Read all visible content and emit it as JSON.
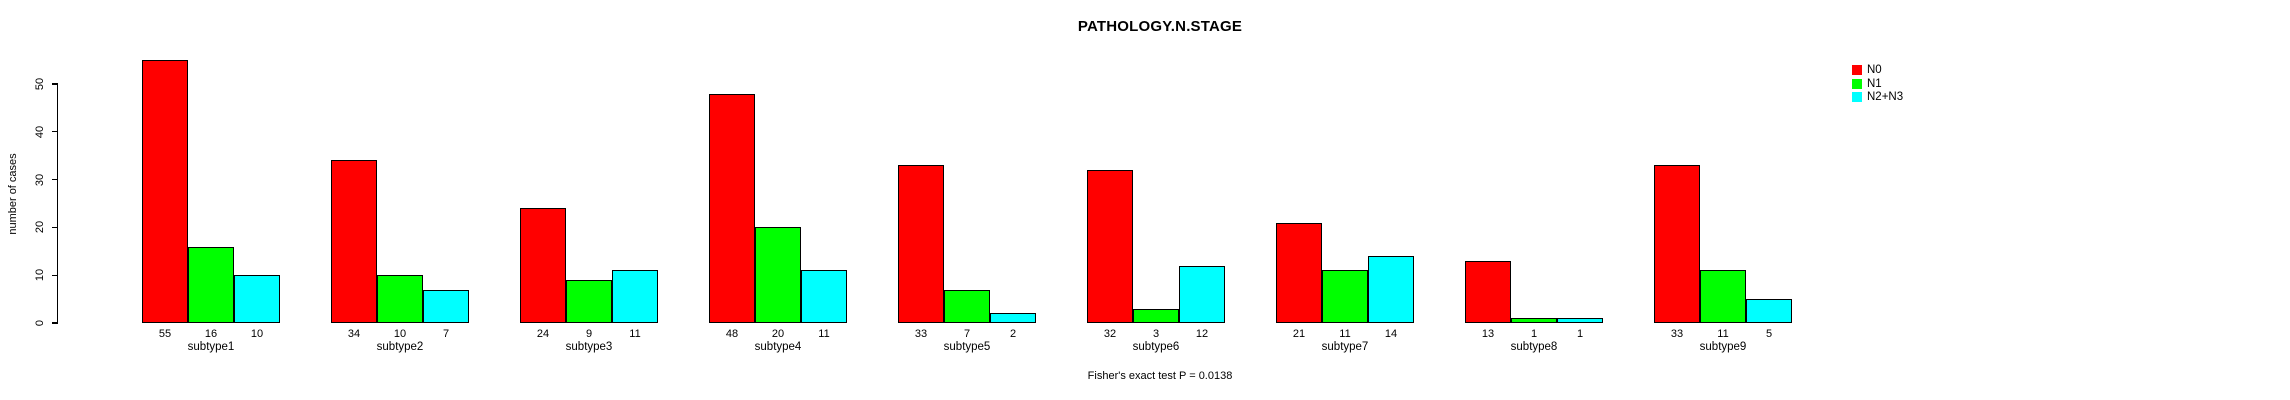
{
  "chart_data": {
    "type": "bar",
    "title": "PATHOLOGY.N.STAGE",
    "ylabel": "number of cases",
    "xlabel": "",
    "footer": "Fisher's exact test P = 0.0138",
    "categories": [
      "subtype1",
      "subtype2",
      "subtype3",
      "subtype4",
      "subtype5",
      "subtype6",
      "subtype7",
      "subtype8",
      "subtype9"
    ],
    "series": [
      {
        "name": "N0",
        "color": "#ff0000",
        "values": [
          55,
          34,
          24,
          48,
          33,
          32,
          21,
          13,
          33
        ]
      },
      {
        "name": "N1",
        "color": "#00ff00",
        "values": [
          16,
          10,
          9,
          20,
          7,
          3,
          11,
          1,
          11
        ]
      },
      {
        "name": "N2+N3",
        "color": "#00ffff",
        "values": [
          10,
          7,
          11,
          11,
          2,
          12,
          14,
          1,
          5
        ]
      }
    ],
    "y_ticks": [
      0,
      10,
      20,
      30,
      40,
      50
    ],
    "ylim": [
      0,
      55
    ],
    "grid": false,
    "legend_position": "top-right",
    "bar_value_labels": true,
    "background": "#ffffff",
    "axis_color": "#000000"
  }
}
